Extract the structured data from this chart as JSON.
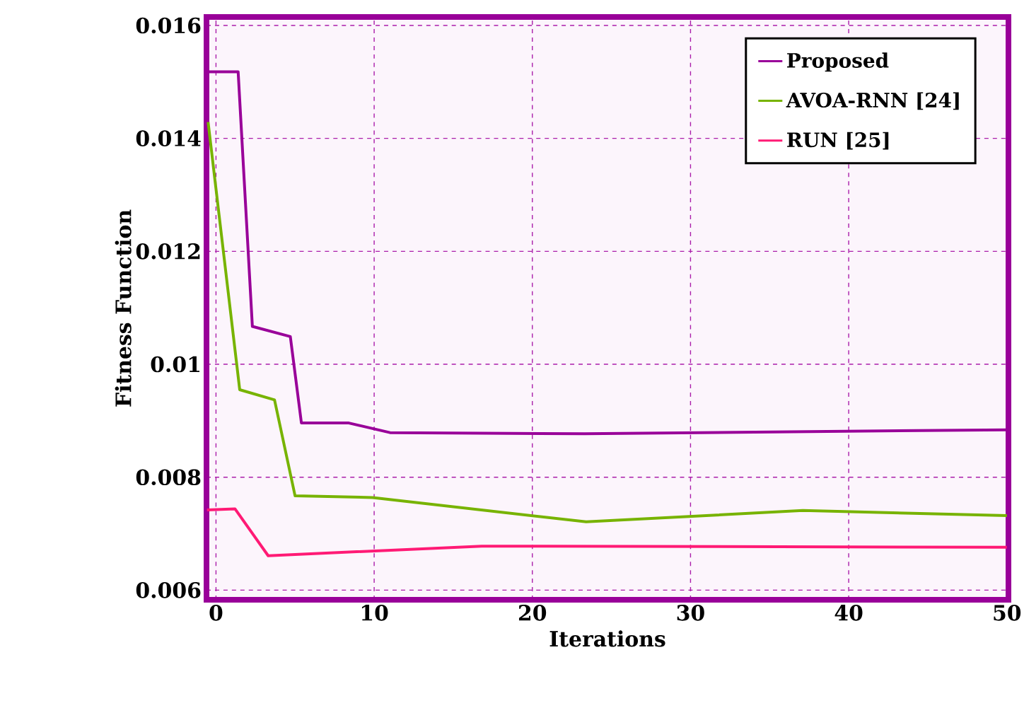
{
  "chart_data": {
    "type": "line",
    "xlabel": "Iterations",
    "ylabel": "Fitness Function",
    "xlim": [
      -0.6,
      50.1
    ],
    "ylim": [
      0.00583,
      0.01615
    ],
    "xticks": [
      0,
      10,
      20,
      30,
      40,
      50
    ],
    "yticks": [
      0.006,
      0.008,
      0.01,
      0.012,
      0.014,
      0.016
    ],
    "grid": true,
    "legend": "top right",
    "marker": "none",
    "line_style": "solid",
    "series": [
      {
        "name": "Proposed",
        "color": "#990099",
        "x": [
          -0.57,
          1.4,
          2.3,
          4.7,
          5.4,
          8.4,
          11,
          23.3,
          50
        ],
        "values": [
          0.01518,
          0.01518,
          0.01067,
          0.01049,
          0.00896,
          0.00896,
          0.00879,
          0.00877,
          0.00884
        ]
      },
      {
        "name": "AVOA-RNN [24]",
        "color": "#77b300",
        "x": [
          -0.5,
          1.5,
          3.7,
          5.0,
          9.9,
          23.4,
          37.1,
          50
        ],
        "values": [
          0.01429,
          0.00955,
          0.00937,
          0.00767,
          0.00764,
          0.00721,
          0.00741,
          0.00732
        ]
      },
      {
        "name": "RUN [25]",
        "color": "#ff1a75",
        "x": [
          -0.57,
          1.2,
          3.3,
          16.8,
          50
        ],
        "values": [
          0.00742,
          0.00744,
          0.00661,
          0.00678,
          0.00676
        ]
      }
    ]
  }
}
